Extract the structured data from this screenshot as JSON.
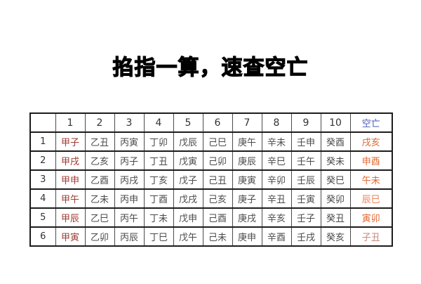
{
  "title": {
    "text": "掐指一算，速查空亡"
  },
  "colors": {
    "background": "#ffffff",
    "title_text": "#000000",
    "header_text": "#333333",
    "row_index_text": "#333333",
    "jiazi_first_column": "#9e3a31",
    "body_text": "#4a4a4a",
    "kongwang_header": "#4a58bd",
    "kongwang_values": [
      "#e2672e",
      "#e2672e",
      "#e2672e",
      "#eb7f55",
      "#e2672e",
      "#c9877a"
    ],
    "border_dark": "#1c1c1c",
    "border_light": "#4a4a4a"
  },
  "chart_data": {
    "type": "table",
    "title": "掐指一算，速查空亡",
    "header": {
      "corner": "",
      "columns": [
        "1",
        "2",
        "3",
        "4",
        "5",
        "6",
        "7",
        "8",
        "9",
        "10"
      ],
      "kongwang": "空亡"
    },
    "rows": [
      {
        "index": "1",
        "jiazi": [
          "甲子",
          "乙丑",
          "丙寅",
          "丁卯",
          "戊辰",
          "己巳",
          "庚午",
          "辛未",
          "壬申",
          "癸酉"
        ],
        "kongwang": "戌亥"
      },
      {
        "index": "2",
        "jiazi": [
          "甲戌",
          "乙亥",
          "丙子",
          "丁丑",
          "戊寅",
          "己卯",
          "庚辰",
          "辛巳",
          "壬午",
          "癸未"
        ],
        "kongwang": "申酉"
      },
      {
        "index": "3",
        "jiazi": [
          "甲申",
          "乙酉",
          "丙戌",
          "丁亥",
          "戊子",
          "己丑",
          "庚寅",
          "辛卯",
          "壬辰",
          "癸巳"
        ],
        "kongwang": "午未"
      },
      {
        "index": "4",
        "jiazi": [
          "甲午",
          "乙未",
          "丙申",
          "丁酉",
          "戊戌",
          "己亥",
          "庚子",
          "辛丑",
          "壬寅",
          "癸卯"
        ],
        "kongwang": "辰巳"
      },
      {
        "index": "5",
        "jiazi": [
          "甲辰",
          "乙巳",
          "丙午",
          "丁未",
          "戊申",
          "己酉",
          "庚戌",
          "辛亥",
          "壬子",
          "癸丑"
        ],
        "kongwang": "寅卯"
      },
      {
        "index": "6",
        "jiazi": [
          "甲寅",
          "乙卯",
          "丙辰",
          "丁巳",
          "戊午",
          "己未",
          "庚申",
          "辛酉",
          "壬戌",
          "癸亥"
        ],
        "kongwang": "子丑"
      }
    ]
  }
}
